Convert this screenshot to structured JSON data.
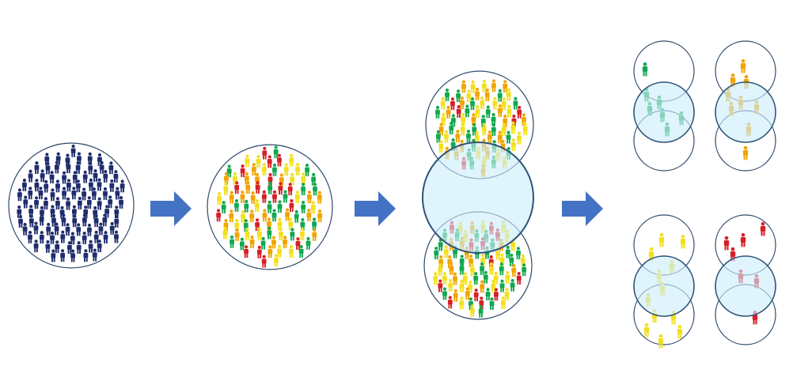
{
  "colors": {
    "background": "#ffffff",
    "circle_outline": "#2f4a6b",
    "overlap_fill": "#cdeefb",
    "overlap_outline": "#2e5478",
    "arrow": "#4472c4",
    "population_navy": "#1f2d6e",
    "green": "#11a84f",
    "yellow": "#f2e020",
    "orange": "#f0a500",
    "red": "#d81f26"
  },
  "stages": [
    {
      "id": "population",
      "people_color": "population_navy",
      "icon": "person-icon"
    },
    {
      "id": "diverse-population",
      "people_colors": [
        "green",
        "yellow",
        "orange",
        "red"
      ],
      "icon": "person-icon"
    },
    {
      "id": "sampled-overlap",
      "people_colors": [
        "green",
        "yellow",
        "orange",
        "red"
      ],
      "icon": "person-icon"
    },
    {
      "id": "stratified-groups",
      "groups": [
        "green",
        "orange",
        "yellow",
        "red"
      ],
      "icon": "person-icon"
    }
  ],
  "arrows": [
    {
      "id": "arrow-1",
      "icon": "right-arrow-icon"
    },
    {
      "id": "arrow-2",
      "icon": "right-arrow-icon"
    },
    {
      "id": "arrow-3",
      "icon": "right-arrow-icon"
    }
  ]
}
